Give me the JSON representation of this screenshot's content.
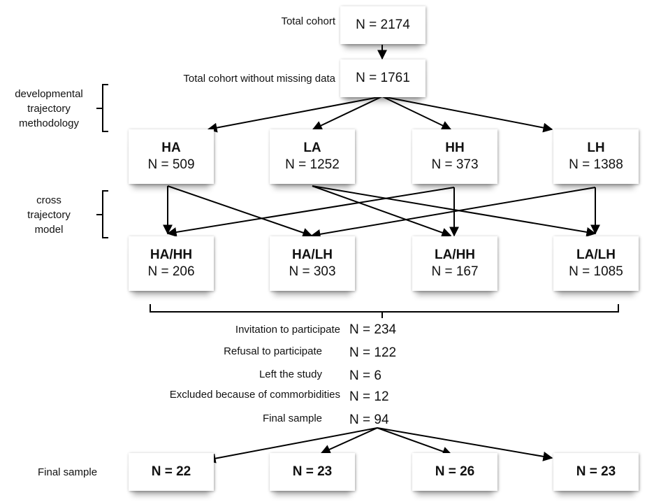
{
  "top": {
    "total_label": "Total cohort",
    "total_n": "N = 2174",
    "nomissing_label": "Total cohort without missing data",
    "nomissing_n": "N = 1761"
  },
  "brackets": {
    "developmental": [
      "developmental",
      "trajectory",
      "methodology"
    ],
    "cross": [
      "cross",
      "trajectory",
      "model"
    ]
  },
  "trajectories": [
    {
      "name": "HA",
      "n": "N = 509"
    },
    {
      "name": "LA",
      "n": "N = 1252"
    },
    {
      "name": "HH",
      "n": "N = 373"
    },
    {
      "name": "LH",
      "n": "N = 1388"
    }
  ],
  "cross_groups": [
    {
      "name": "HA/HH",
      "n": "N = 206"
    },
    {
      "name": "HA/LH",
      "n": "N = 303"
    },
    {
      "name": "LA/HH",
      "n": "N = 167"
    },
    {
      "name": "LA/LH",
      "n": "N = 1085"
    }
  ],
  "steps": [
    {
      "label": "Invitation to participate",
      "n": "N = 234"
    },
    {
      "label": "Refusal to participate",
      "n": "N = 122"
    },
    {
      "label": "Left the study",
      "n": "N = 6"
    },
    {
      "label": "Excluded because of commorbidities",
      "n": "N = 12"
    },
    {
      "label": "Final sample",
      "n": "N = 94"
    }
  ],
  "final": {
    "label": "Final sample",
    "groups": [
      "N = 22",
      "N = 23",
      "N = 26",
      "N = 23"
    ]
  }
}
